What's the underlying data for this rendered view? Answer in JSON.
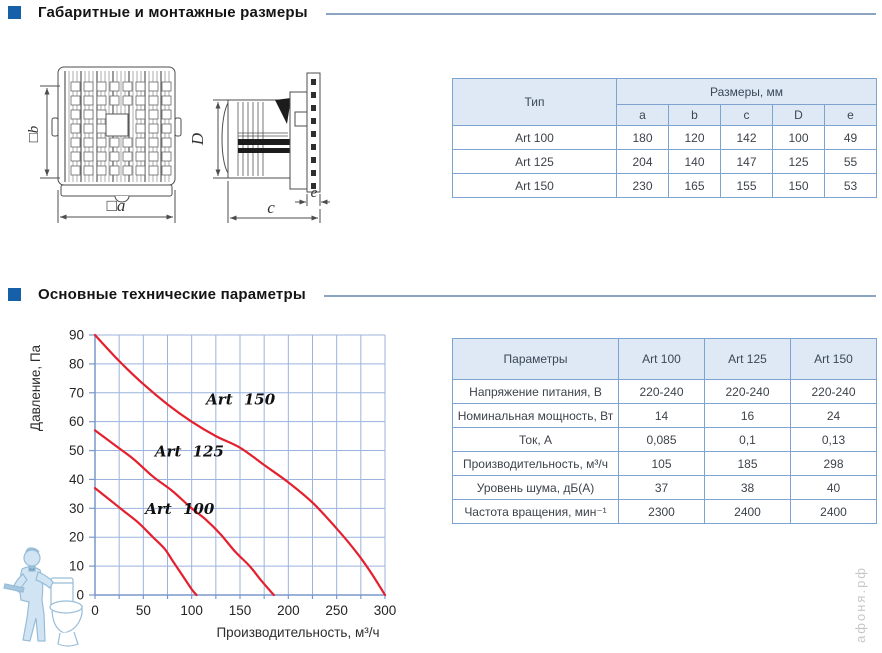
{
  "page": {
    "accent_blue": "#1560a8",
    "rule_color": "#8ba5c1",
    "table_border": "#7da4d0",
    "table_header_bg": "#dfe9f5",
    "watermark_text": "афоня.рф"
  },
  "sections": [
    {
      "title": "Габаритные и монтажные размеры"
    },
    {
      "title": "Основные технические параметры"
    }
  ],
  "drawing": {
    "front_height_label": "□b",
    "front_width_label": "□a",
    "duct_diameter_label": "D",
    "panel_depth_label": "e",
    "total_depth_label": "c"
  },
  "dimensions_table": {
    "col_type": "Тип",
    "col_sizes": "Размеры, мм",
    "size_cols": [
      "a",
      "b",
      "c",
      "D",
      "e"
    ],
    "rows": [
      {
        "type": "Art 100",
        "values": [
          "180",
          "120",
          "142",
          "100",
          "49"
        ]
      },
      {
        "type": "Art 125",
        "values": [
          "204",
          "140",
          "147",
          "125",
          "55"
        ]
      },
      {
        "type": "Art 150",
        "values": [
          "230",
          "165",
          "155",
          "150",
          "53"
        ]
      }
    ]
  },
  "params_table": {
    "headers": [
      "Параметры",
      "Art 100",
      "Art 125",
      "Art 150"
    ],
    "rows": [
      [
        "Напряжение питания, В",
        "220-240",
        "220-240",
        "220-240"
      ],
      [
        "Номинальная мощность, Вт",
        "14",
        "16",
        "24"
      ],
      [
        "Ток, А",
        "0,085",
        "0,1",
        "0,13"
      ],
      [
        "Производительность, м³/ч",
        "105",
        "185",
        "298"
      ],
      [
        "Уровень шума, дБ(А)",
        "37",
        "38",
        "40"
      ],
      [
        "Частота вращения, мин⁻¹",
        "2300",
        "2400",
        "2400"
      ]
    ]
  },
  "chart_data": {
    "type": "line",
    "title": "",
    "xlabel": "Производительность, м³/ч",
    "ylabel": "Давление, Па",
    "xlim": [
      0,
      300
    ],
    "ylim": [
      0,
      90
    ],
    "x_tick_step": 50,
    "x_grid_step": 25,
    "y_tick_step": 10,
    "y_grid_step": 10,
    "grid_on": true,
    "legend": "labels-on-curves",
    "grid_color": "#9cb3de",
    "axis_color": "#7b97cb",
    "curve_color": "#e4202e",
    "series": [
      {
        "name": "Art 100",
        "points": [
          [
            0,
            37
          ],
          [
            15,
            33
          ],
          [
            30,
            29
          ],
          [
            45,
            25
          ],
          [
            60,
            20
          ],
          [
            72,
            16
          ],
          [
            80,
            12
          ],
          [
            90,
            7
          ],
          [
            100,
            2
          ],
          [
            105,
            0
          ]
        ],
        "label_pos": [
          52,
          28
        ]
      },
      {
        "name": "Art 125",
        "points": [
          [
            0,
            57
          ],
          [
            20,
            52
          ],
          [
            40,
            47
          ],
          [
            60,
            41
          ],
          [
            80,
            36
          ],
          [
            100,
            30
          ],
          [
            115,
            26
          ],
          [
            130,
            21
          ],
          [
            145,
            15
          ],
          [
            160,
            10
          ],
          [
            172,
            5
          ],
          [
            185,
            0
          ]
        ],
        "label_pos": [
          62,
          48
        ]
      },
      {
        "name": "Art 150",
        "points": [
          [
            0,
            90
          ],
          [
            25,
            81
          ],
          [
            50,
            73
          ],
          [
            75,
            66
          ],
          [
            100,
            60
          ],
          [
            125,
            55
          ],
          [
            150,
            51
          ],
          [
            175,
            45
          ],
          [
            200,
            39
          ],
          [
            225,
            32
          ],
          [
            250,
            23
          ],
          [
            270,
            15
          ],
          [
            285,
            8
          ],
          [
            300,
            0
          ]
        ],
        "label_pos": [
          115,
          66
        ]
      }
    ]
  }
}
